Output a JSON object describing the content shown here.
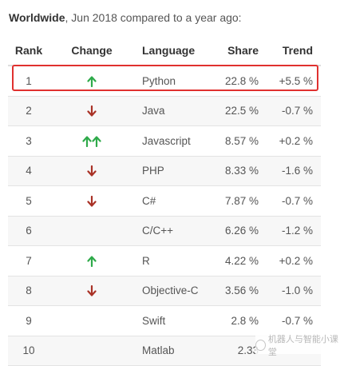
{
  "caption": {
    "bold": "Worldwide",
    "rest": ", Jun 2018 compared to a year ago:"
  },
  "headers": {
    "rank": "Rank",
    "change": "Change",
    "language": "Language",
    "share": "Share",
    "trend": "Trend"
  },
  "colors": {
    "up": "#2eaa4a",
    "down": "#a93226",
    "highlight": "#e0312f"
  },
  "rows": [
    {
      "rank": "1",
      "change": "up",
      "change_icon": "arrow-up-icon",
      "language": "Python",
      "share": "22.8 %",
      "trend": "+5.5 %"
    },
    {
      "rank": "2",
      "change": "down",
      "change_icon": "arrow-down-icon",
      "language": "Java",
      "share": "22.5 %",
      "trend": "-0.7 %"
    },
    {
      "rank": "3",
      "change": "up2",
      "change_icon": "double-arrow-up-icon",
      "language": "Javascript",
      "share": "8.57 %",
      "trend": "+0.2 %"
    },
    {
      "rank": "4",
      "change": "down",
      "change_icon": "arrow-down-icon",
      "language": "PHP",
      "share": "8.33 %",
      "trend": "-1.6 %"
    },
    {
      "rank": "5",
      "change": "down",
      "change_icon": "arrow-down-icon",
      "language": "C#",
      "share": "7.87 %",
      "trend": "-0.7 %"
    },
    {
      "rank": "6",
      "change": "none",
      "change_icon": "",
      "language": "C/C++",
      "share": "6.26 %",
      "trend": "-1.2 %"
    },
    {
      "rank": "7",
      "change": "up",
      "change_icon": "arrow-up-icon",
      "language": "R",
      "share": "4.22 %",
      "trend": "+0.2 %"
    },
    {
      "rank": "8",
      "change": "down",
      "change_icon": "arrow-down-icon",
      "language": "Objective-C",
      "share": "3.56 %",
      "trend": "-1.0 %"
    },
    {
      "rank": "9",
      "change": "none",
      "change_icon": "",
      "language": "Swift",
      "share": "2.8 %",
      "trend": "-0.7 %"
    },
    {
      "rank": "10",
      "change": "none",
      "change_icon": "",
      "language": "Matlab",
      "share": "2.33",
      "trend": ""
    }
  ],
  "watermark": {
    "text": "机器人与智能小课堂",
    "icon": "wechat-icon"
  }
}
